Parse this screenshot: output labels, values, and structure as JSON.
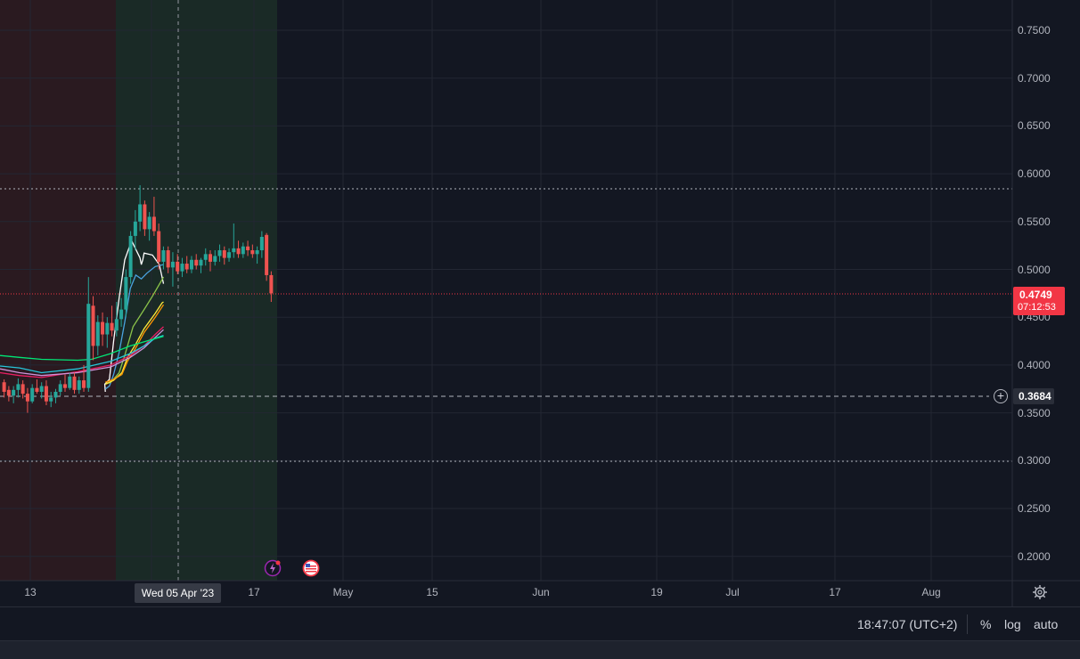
{
  "price_axis": {
    "ticks": [
      "0.7500",
      "0.7000",
      "0.6500",
      "0.6000",
      "0.5500",
      "0.5000",
      "0.4500",
      "0.4000",
      "0.3500",
      "0.3000",
      "0.2500",
      "0.2000"
    ],
    "last_price": "0.4749",
    "countdown": "07:12:53",
    "horizontal_line_price": "0.3684"
  },
  "time_axis": {
    "labels": [
      "13",
      "17",
      "May",
      "15",
      "Jun",
      "19",
      "Jul",
      "17",
      "Aug"
    ],
    "crosshair_label": "Wed 05 Apr '23"
  },
  "status_bar": {
    "clock": "18:47:07 (UTC+2)",
    "percent_label": "%",
    "log_label": "log",
    "auto_label": "auto"
  },
  "icons": {
    "settings": "gear-icon",
    "add_alert": "plus-circle-icon",
    "event_dividend": "lightning-icon",
    "event_economic": "us-flag-icon"
  },
  "colors": {
    "background": "#131722",
    "bearish_zone": "#2a1a20",
    "bullish_zone": "#1a2a26",
    "up_candle": "#26a69a",
    "down_candle": "#ef5350",
    "last_price": "#f23645"
  },
  "chart_data": {
    "type": "candlestick",
    "y_range": [
      0.175,
      0.775
    ],
    "ohlc": [
      [
        0.382,
        0.385,
        0.366,
        0.372
      ],
      [
        0.374,
        0.378,
        0.362,
        0.368
      ],
      [
        0.368,
        0.378,
        0.36,
        0.374
      ],
      [
        0.374,
        0.386,
        0.366,
        0.38
      ],
      [
        0.38,
        0.384,
        0.365,
        0.37
      ],
      [
        0.37,
        0.376,
        0.35,
        0.362
      ],
      [
        0.362,
        0.38,
        0.36,
        0.376
      ],
      [
        0.376,
        0.385,
        0.37,
        0.372
      ],
      [
        0.372,
        0.382,
        0.365,
        0.378
      ],
      [
        0.378,
        0.384,
        0.358,
        0.362
      ],
      [
        0.362,
        0.372,
        0.356,
        0.366
      ],
      [
        0.366,
        0.375,
        0.36,
        0.372
      ],
      [
        0.372,
        0.384,
        0.368,
        0.38
      ],
      [
        0.38,
        0.39,
        0.372,
        0.376
      ],
      [
        0.376,
        0.392,
        0.374,
        0.388
      ],
      [
        0.388,
        0.392,
        0.37,
        0.374
      ],
      [
        0.374,
        0.388,
        0.37,
        0.384
      ],
      [
        0.384,
        0.4,
        0.372,
        0.376
      ],
      [
        0.376,
        0.492,
        0.372,
        0.464
      ],
      [
        0.462,
        0.472,
        0.405,
        0.42
      ],
      [
        0.42,
        0.452,
        0.41,
        0.445
      ],
      [
        0.445,
        0.455,
        0.42,
        0.432
      ],
      [
        0.432,
        0.45,
        0.418,
        0.444
      ],
      [
        0.444,
        0.462,
        0.43,
        0.436
      ],
      [
        0.436,
        0.466,
        0.43,
        0.448
      ],
      [
        0.448,
        0.47,
        0.44,
        0.458
      ],
      [
        0.458,
        0.5,
        0.45,
        0.492
      ],
      [
        0.492,
        0.54,
        0.485,
        0.535
      ],
      [
        0.535,
        0.562,
        0.52,
        0.55
      ],
      [
        0.55,
        0.588,
        0.54,
        0.568
      ],
      [
        0.568,
        0.572,
        0.535,
        0.542
      ],
      [
        0.542,
        0.56,
        0.53,
        0.555
      ],
      [
        0.555,
        0.576,
        0.535,
        0.54
      ],
      [
        0.54,
        0.548,
        0.5,
        0.508
      ],
      [
        0.508,
        0.524,
        0.5,
        0.52
      ],
      [
        0.52,
        0.524,
        0.496,
        0.502
      ],
      [
        0.502,
        0.518,
        0.482,
        0.508
      ],
      [
        0.508,
        0.516,
        0.495,
        0.498
      ],
      [
        0.498,
        0.512,
        0.492,
        0.506
      ],
      [
        0.506,
        0.514,
        0.496,
        0.5
      ],
      [
        0.5,
        0.514,
        0.496,
        0.51
      ],
      [
        0.51,
        0.516,
        0.5,
        0.504
      ],
      [
        0.504,
        0.512,
        0.496,
        0.51
      ],
      [
        0.51,
        0.522,
        0.504,
        0.516
      ],
      [
        0.516,
        0.52,
        0.498,
        0.508
      ],
      [
        0.508,
        0.52,
        0.504,
        0.514
      ],
      [
        0.514,
        0.526,
        0.508,
        0.52
      ],
      [
        0.52,
        0.524,
        0.505,
        0.512
      ],
      [
        0.512,
        0.522,
        0.508,
        0.518
      ],
      [
        0.518,
        0.548,
        0.512,
        0.522
      ],
      [
        0.522,
        0.53,
        0.512,
        0.516
      ],
      [
        0.516,
        0.528,
        0.512,
        0.524
      ],
      [
        0.524,
        0.53,
        0.514,
        0.52
      ],
      [
        0.52,
        0.526,
        0.512,
        0.516
      ],
      [
        0.516,
        0.524,
        0.506,
        0.52
      ],
      [
        0.52,
        0.54,
        0.512,
        0.534
      ],
      [
        0.536,
        0.538,
        0.488,
        0.494
      ],
      [
        0.494,
        0.498,
        0.466,
        0.475
      ]
    ],
    "moving_averages": [
      {
        "color": "#ffffff",
        "values": [
          [
            0.372,
            0.38
          ],
          [
            0.38,
            0.378
          ],
          [
            0.385,
            0.395
          ],
          [
            0.425,
            0.41
          ],
          [
            0.47,
            0.43
          ],
          [
            0.51,
            0.45
          ],
          [
            0.53,
            0.475
          ],
          [
            0.512,
            0.505
          ],
          [
            0.505,
            0.51
          ],
          [
            0.51,
            0.515
          ],
          [
            0.517,
            0.52
          ],
          [
            0.515,
            0.55
          ],
          [
            0.505,
            0.575
          ],
          [
            0.485,
            0.59
          ]
        ]
      },
      {
        "color": "#4aa3df",
        "values": [
          [
            0.375,
            0.38
          ],
          [
            0.378,
            0.395
          ],
          [
            0.39,
            0.41
          ],
          [
            0.413,
            0.43
          ],
          [
            0.445,
            0.45
          ],
          [
            0.48,
            0.47
          ],
          [
            0.494,
            0.49
          ],
          [
            0.49,
            0.51
          ],
          [
            0.496,
            0.53
          ],
          [
            0.503,
            0.56
          ],
          [
            0.505,
            0.59
          ]
        ]
      },
      {
        "color": "#8bc34a",
        "values": [
          [
            0.38,
            0.38
          ],
          [
            0.382,
            0.4
          ],
          [
            0.392,
            0.43
          ],
          [
            0.41,
            0.45
          ],
          [
            0.44,
            0.48
          ],
          [
            0.458,
            0.52
          ],
          [
            0.472,
            0.55
          ],
          [
            0.487,
            0.58
          ],
          [
            0.492,
            0.59
          ]
        ]
      },
      {
        "color": "#ffeb3b",
        "values": [
          [
            0.38,
            0.38
          ],
          [
            0.384,
            0.41
          ],
          [
            0.392,
            0.44
          ],
          [
            0.408,
            0.46
          ],
          [
            0.422,
            0.49
          ],
          [
            0.438,
            0.52
          ],
          [
            0.454,
            0.56
          ],
          [
            0.465,
            0.585
          ],
          [
            0.466,
            0.59
          ]
        ]
      },
      {
        "color": "#ff9800",
        "values": [
          [
            0.382,
            0.38
          ],
          [
            0.385,
            0.41
          ],
          [
            0.39,
            0.44
          ],
          [
            0.404,
            0.46
          ],
          [
            0.418,
            0.49
          ],
          [
            0.434,
            0.52
          ],
          [
            0.45,
            0.56
          ],
          [
            0.463,
            0.59
          ]
        ]
      },
      {
        "color": "#e91e63",
        "values": [
          [
            0.392,
            0.0
          ],
          [
            0.389,
            0.07
          ],
          [
            0.387,
            0.15
          ],
          [
            0.393,
            0.28
          ],
          [
            0.4,
            0.4
          ],
          [
            0.41,
            0.47
          ],
          [
            0.42,
            0.52
          ],
          [
            0.432,
            0.56
          ],
          [
            0.44,
            0.59
          ]
        ]
      },
      {
        "color": "#ce93d8",
        "values": [
          [
            0.396,
            0.0
          ],
          [
            0.392,
            0.07
          ],
          [
            0.389,
            0.15
          ],
          [
            0.392,
            0.28
          ],
          [
            0.398,
            0.4
          ],
          [
            0.408,
            0.47
          ],
          [
            0.418,
            0.52
          ],
          [
            0.429,
            0.56
          ],
          [
            0.437,
            0.59
          ]
        ]
      },
      {
        "color": "#26c6da",
        "values": [
          [
            0.399,
            0.0
          ],
          [
            0.397,
            0.07
          ],
          [
            0.392,
            0.15
          ],
          [
            0.396,
            0.28
          ],
          [
            0.404,
            0.4
          ],
          [
            0.412,
            0.47
          ],
          [
            0.42,
            0.52
          ],
          [
            0.428,
            0.56
          ],
          [
            0.431,
            0.59
          ]
        ]
      },
      {
        "color": "#00e676",
        "values": [
          [
            0.41,
            0.0
          ],
          [
            0.408,
            0.07
          ],
          [
            0.406,
            0.15
          ],
          [
            0.405,
            0.28
          ],
          [
            0.406,
            0.33
          ],
          [
            0.412,
            0.4
          ],
          [
            0.42,
            0.47
          ],
          [
            0.426,
            0.54
          ],
          [
            0.43,
            0.59
          ]
        ]
      }
    ]
  }
}
